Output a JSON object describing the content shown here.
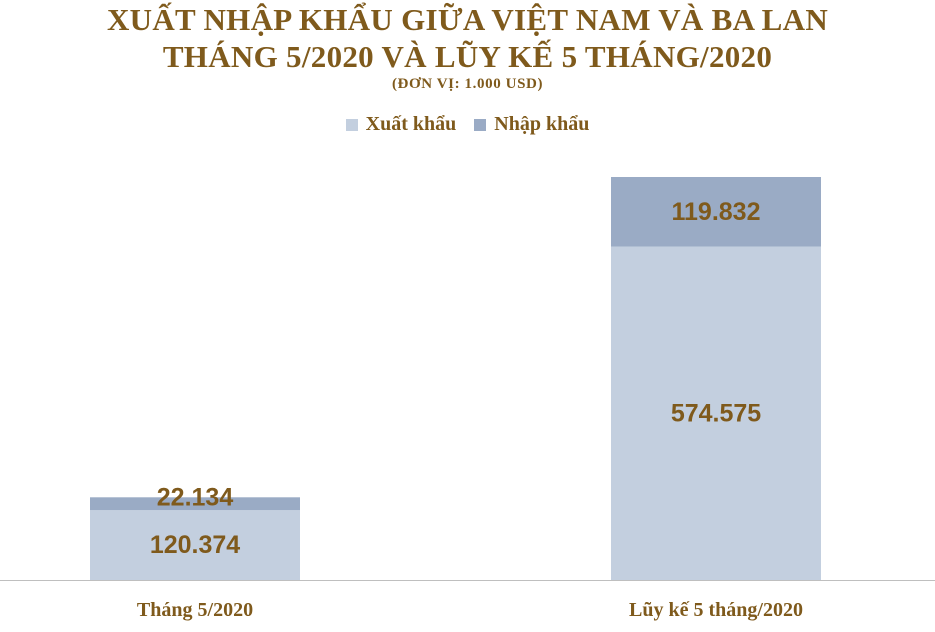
{
  "chart_data": {
    "type": "bar",
    "stacked": true,
    "title": "XUẤT NHẬP KHẨU GIỮA VIỆT NAM VÀ BA LAN",
    "subtitle": "THÁNG 5/2020 VÀ LŨY KẾ 5 THÁNG/2020",
    "unit_note": "(ĐƠN VỊ: 1.000 USD)",
    "categories": [
      "Tháng 5/2020",
      "Lũy kế 5 tháng/2020"
    ],
    "series": [
      {
        "name": "Xuất khẩu",
        "values": [
          120374,
          574575
        ],
        "labels": [
          "120.374",
          "574.575"
        ],
        "color": "#c3cfdf"
      },
      {
        "name": "Nhập khẩu",
        "values": [
          22134,
          119832
        ],
        "labels": [
          "22.134",
          "119.832"
        ],
        "color": "#9aabc5"
      }
    ],
    "legend_position": "top",
    "grid": false,
    "ylim": [
      0,
      694407
    ]
  },
  "colors": {
    "text": "#7f5a1c",
    "axis": "#bfbfbf"
  }
}
